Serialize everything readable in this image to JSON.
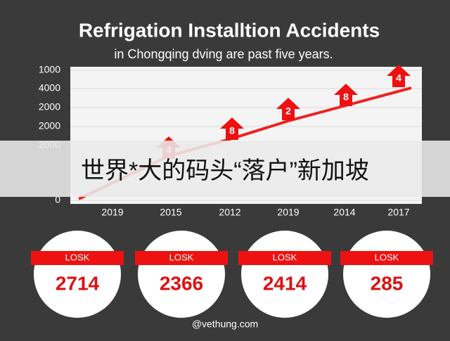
{
  "header": {
    "title": "Refrigation Installtion Accidents",
    "subtitle": "in Chongqing dving are past five years."
  },
  "chart": {
    "y_labels": [
      1000,
      4000,
      2000,
      2000,
      2000,
      0
    ],
    "x_labels": [
      2019,
      2015,
      2012,
      2019,
      2014,
      2017
    ],
    "markers": [
      4,
      8,
      2,
      8,
      4
    ]
  },
  "banner": {
    "text": "世界*大的码头“落户”新加坡"
  },
  "cards": [
    {
      "label": "LOSK",
      "value": 2714
    },
    {
      "label": "LOSK",
      "value": 2366
    },
    {
      "label": "LOSK",
      "value": 2414
    },
    {
      "label": "LOSK",
      "value": 285
    }
  ],
  "footer": {
    "text": "@vethung.com"
  }
}
